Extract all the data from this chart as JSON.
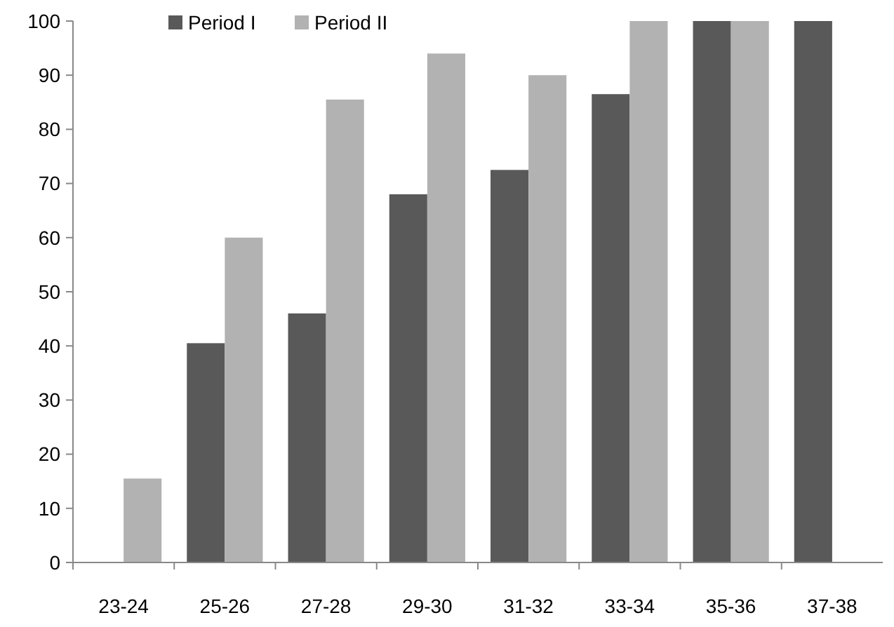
{
  "chart_data": {
    "type": "bar",
    "categories": [
      "23-24",
      "25-26",
      "27-28",
      "29-30",
      "31-32",
      "33-34",
      "35-36",
      "37-38"
    ],
    "series": [
      {
        "name": "Period I",
        "color": "#595959",
        "values": [
          null,
          40.5,
          46,
          68,
          72.5,
          86.5,
          100,
          100
        ]
      },
      {
        "name": "Period II",
        "color": "#b2b2b2",
        "values": [
          15.5,
          60,
          85.5,
          94,
          90,
          100,
          100,
          null
        ]
      }
    ],
    "ylim": [
      0,
      100
    ],
    "yticks": [
      0,
      10,
      20,
      30,
      40,
      50,
      60,
      70,
      80,
      90,
      100
    ],
    "legend": "top left",
    "grid": false
  }
}
